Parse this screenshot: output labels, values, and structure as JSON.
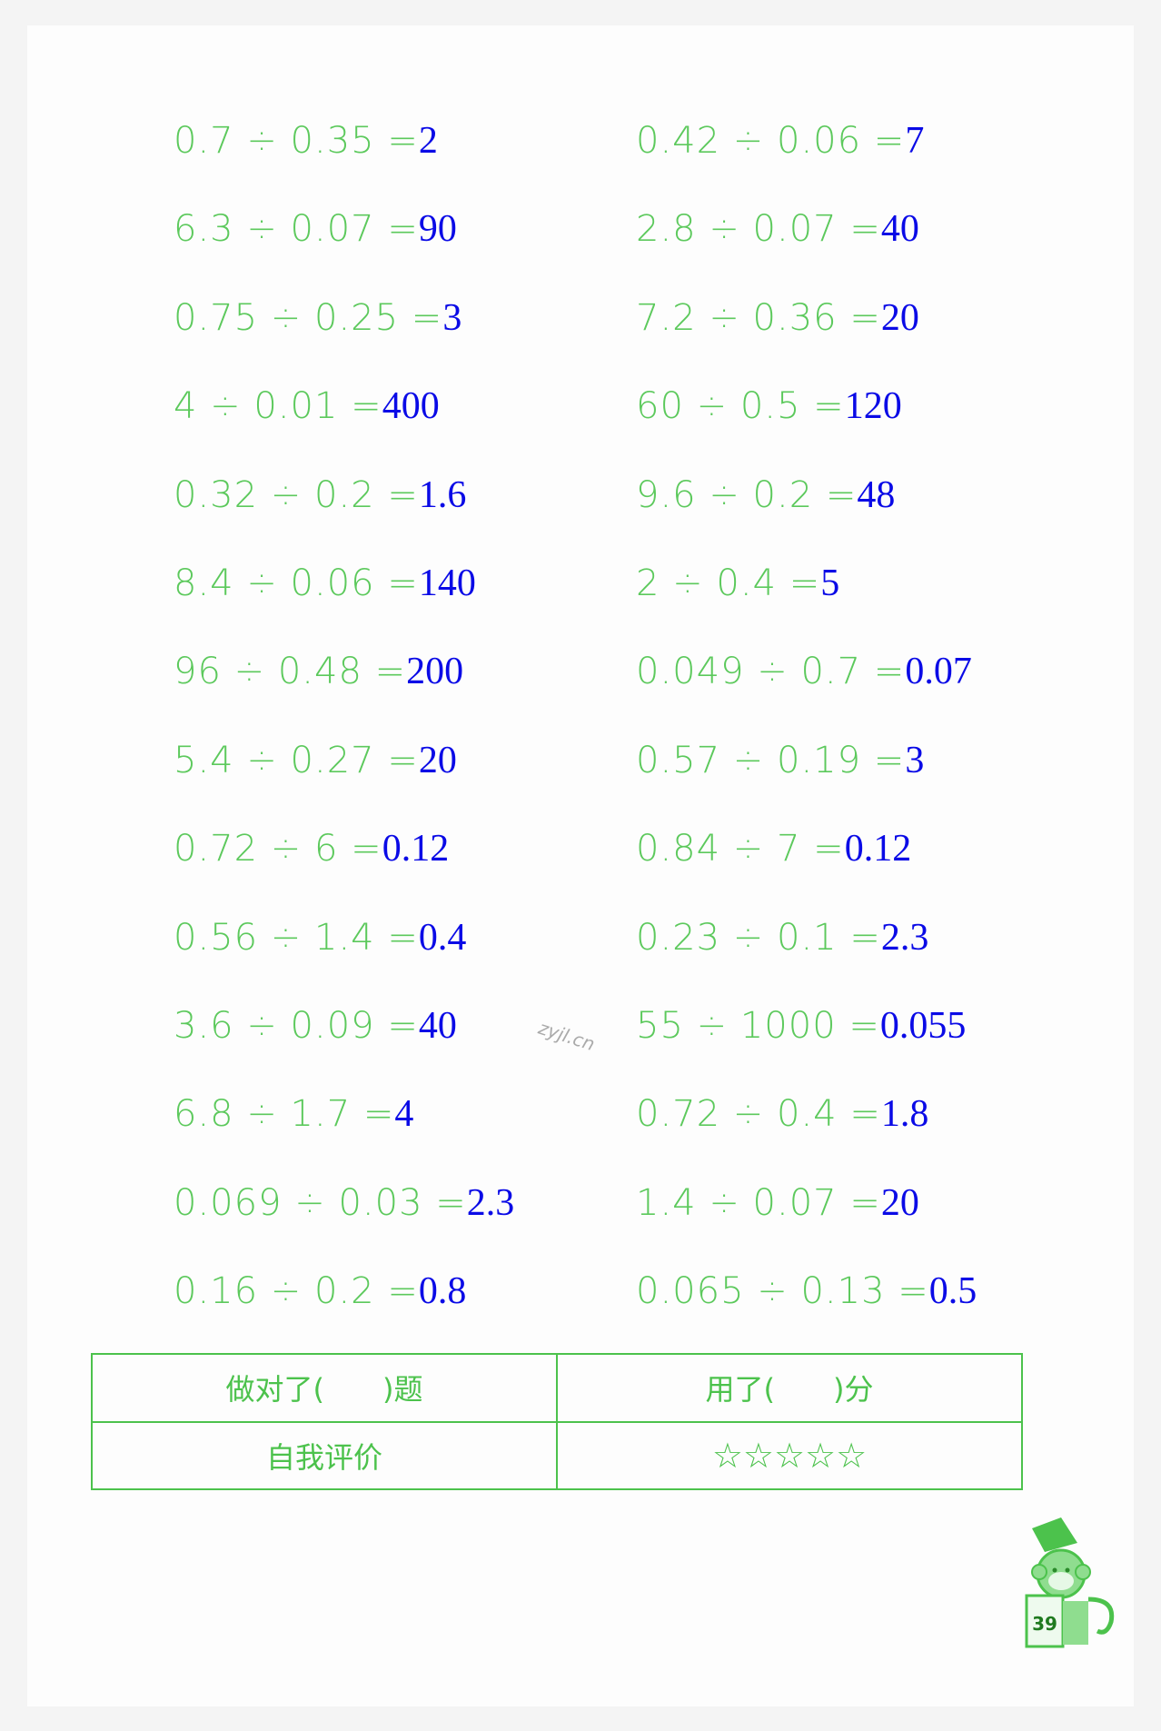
{
  "left_column": [
    {
      "q": "0.7 ÷ 0.35 =",
      "a": "2"
    },
    {
      "q": "6.3 ÷ 0.07 =",
      "a": "90"
    },
    {
      "q": "0.75 ÷ 0.25 =",
      "a": "3"
    },
    {
      "q": "4 ÷ 0.01 =",
      "a": "400"
    },
    {
      "q": "0.32 ÷ 0.2 =",
      "a": "1.6"
    },
    {
      "q": "8.4 ÷ 0.06 =",
      "a": "140"
    },
    {
      "q": "96 ÷ 0.48 =",
      "a": "200"
    },
    {
      "q": "5.4 ÷ 0.27 =",
      "a": "20"
    },
    {
      "q": "0.72 ÷ 6 =",
      "a": "0.12"
    },
    {
      "q": "0.56 ÷ 1.4 =",
      "a": "0.4"
    },
    {
      "q": "3.6 ÷ 0.09 =",
      "a": "40"
    },
    {
      "q": "6.8 ÷ 1.7 =",
      "a": "4"
    },
    {
      "q": "0.069 ÷ 0.03 =",
      "a": "2.3"
    },
    {
      "q": "0.16 ÷ 0.2 =",
      "a": "0.8"
    }
  ],
  "right_column": [
    {
      "q": "0.42 ÷ 0.06 =",
      "a": "7"
    },
    {
      "q": "2.8 ÷ 0.07 =",
      "a": "40"
    },
    {
      "q": "7.2 ÷ 0.36 =",
      "a": "20"
    },
    {
      "q": "60 ÷ 0.5 =",
      "a": "120"
    },
    {
      "q": "9.6 ÷ 0.2 =",
      "a": "48"
    },
    {
      "q": "2 ÷ 0.4 =",
      "a": "5"
    },
    {
      "q": "0.049 ÷ 0.7 =",
      "a": "0.07"
    },
    {
      "q": "0.57 ÷ 0.19 =",
      "a": "3"
    },
    {
      "q": "0.84 ÷ 7 =",
      "a": "0.12"
    },
    {
      "q": "0.23 ÷ 0.1 =",
      "a": "2.3"
    },
    {
      "q": "55 ÷ 1000 =",
      "a": "0.055"
    },
    {
      "q": "0.72 ÷ 0.4 =",
      "a": "1.8"
    },
    {
      "q": "1.4 ÷ 0.07 =",
      "a": "20"
    },
    {
      "q": "0.065 ÷ 0.13 =",
      "a": "0.5"
    }
  ],
  "score_table": {
    "correct": "做对了(　　)题",
    "time": "用了(　　)分",
    "self_eval": "自我评价",
    "stars": "☆☆☆☆☆",
    "star_count": 5
  },
  "watermark": "zyjl.cn",
  "page_number": "39",
  "colors": {
    "question": "#5cc95c",
    "answer": "#0a0ae6",
    "table": "#4cc24c"
  }
}
